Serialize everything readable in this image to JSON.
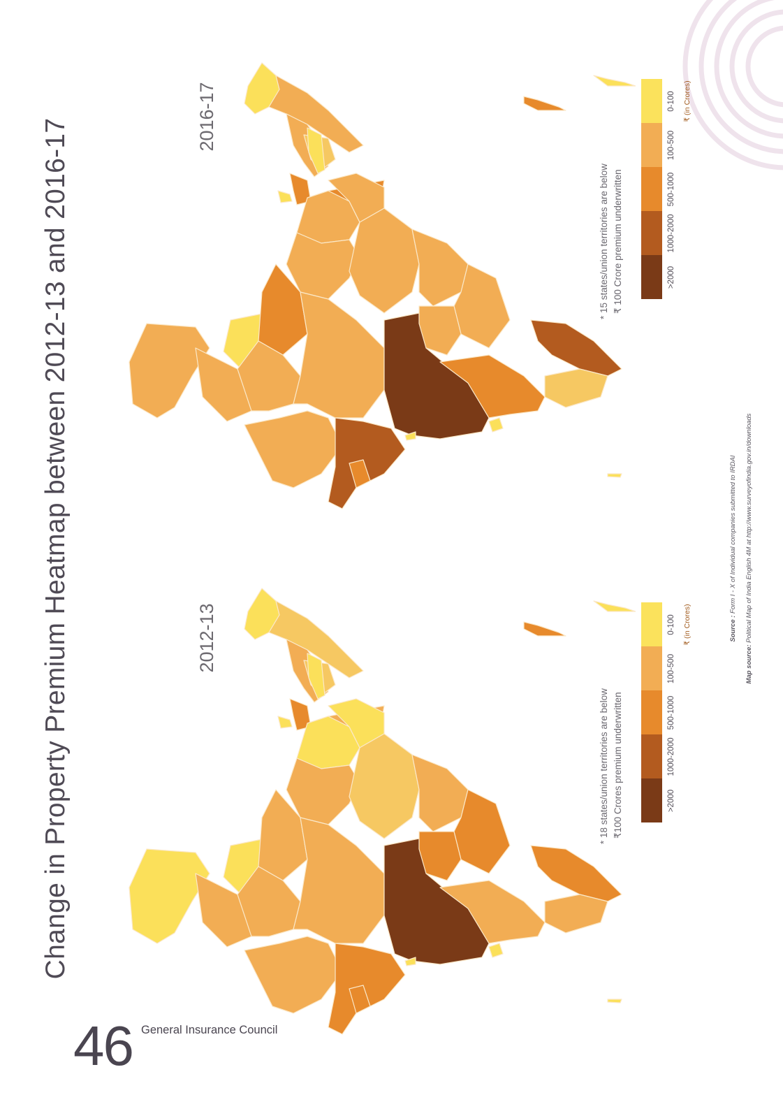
{
  "title": "Change in Property Premium Heatmap between 2012-13 and 2016-17",
  "maps": [
    {
      "year": "2016-17",
      "footnote_line1": "* 15 states/union territories are below",
      "footnote_line2": "₹ 100 Crore premium underwritten"
    },
    {
      "year": "2012-13",
      "footnote_line1": "* 18 states/union territories are below",
      "footnote_line2": "₹100 Crores premium underwritten"
    }
  ],
  "legend": {
    "unit": "₹ (in Crores)",
    "classes": [
      {
        "label": ">2000",
        "color": "#7a3a17"
      },
      {
        "label": "1000-2000",
        "color": "#b35b1f"
      },
      {
        "label": "500-1000",
        "color": "#e78a2c"
      },
      {
        "label": "100-500",
        "color": "#f2ad54"
      },
      {
        "label": "0-100",
        "color": "#fbe25c"
      }
    ]
  },
  "source": {
    "label": "Source :",
    "text": "Form I - X of Individual companies submitted to IRDAI",
    "map_label": "Map source:",
    "map_text": "Political Map of India English 4M at http://www.surveyofindia.gov.in/downloads"
  },
  "footer": {
    "page_number": "46",
    "publisher": "General Insurance Council"
  },
  "colors": {
    "text": "#4f4a55",
    "decoration": "#efe3ea"
  }
}
